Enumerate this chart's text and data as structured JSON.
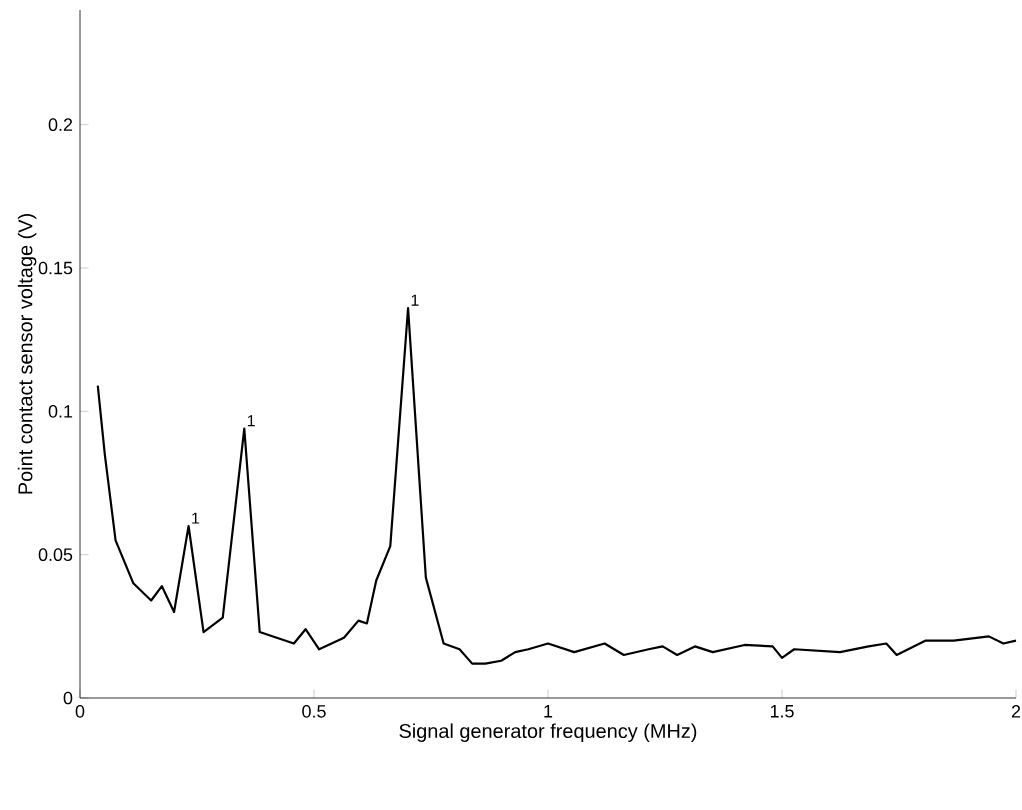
{
  "chart_data": {
    "type": "line",
    "xlabel": "Signal generator frequency (MHz)",
    "ylabel": "Point contact sensor voltage (V)",
    "xlim": [
      0,
      2
    ],
    "ylim": [
      0,
      0.24
    ],
    "xticks": [
      0,
      0.5,
      1,
      1.5,
      2
    ],
    "yticks": [
      0,
      0.05,
      0.1,
      0.15,
      0.2
    ],
    "x": [
      0.038,
      0.053,
      0.076,
      0.114,
      0.152,
      0.175,
      0.201,
      0.232,
      0.264,
      0.305,
      0.351,
      0.384,
      0.457,
      0.482,
      0.511,
      0.564,
      0.595,
      0.613,
      0.633,
      0.663,
      0.701,
      0.739,
      0.777,
      0.811,
      0.838,
      0.866,
      0.9,
      0.93,
      0.958,
      1.0,
      1.056,
      1.121,
      1.162,
      1.215,
      1.245,
      1.276,
      1.314,
      1.352,
      1.42,
      1.48,
      1.5,
      1.526,
      1.624,
      1.685,
      1.723,
      1.745,
      1.806,
      1.867,
      1.942,
      1.973,
      2.0
    ],
    "series": [
      {
        "color": "#000000",
        "values": [
          0.109,
          0.085,
          0.055,
          0.04,
          0.034,
          0.039,
          0.03,
          0.06,
          0.023,
          0.028,
          0.094,
          0.023,
          0.019,
          0.024,
          0.017,
          0.021,
          0.027,
          0.026,
          0.041,
          0.053,
          0.136,
          0.042,
          0.019,
          0.017,
          0.012,
          0.012,
          0.013,
          0.016,
          0.017,
          0.019,
          0.016,
          0.019,
          0.015,
          0.017,
          0.018,
          0.015,
          0.018,
          0.016,
          0.0185,
          0.018,
          0.014,
          0.017,
          0.016,
          0.018,
          0.019,
          0.015,
          0.02,
          0.02,
          0.0215,
          0.019,
          0.02
        ]
      }
    ],
    "annotations": [
      {
        "text": "1",
        "x": 0.232,
        "y": 0.06
      },
      {
        "text": "1",
        "x": 0.351,
        "y": 0.094
      },
      {
        "text": "1",
        "x": 0.701,
        "y": 0.136
      }
    ],
    "grid": false
  }
}
